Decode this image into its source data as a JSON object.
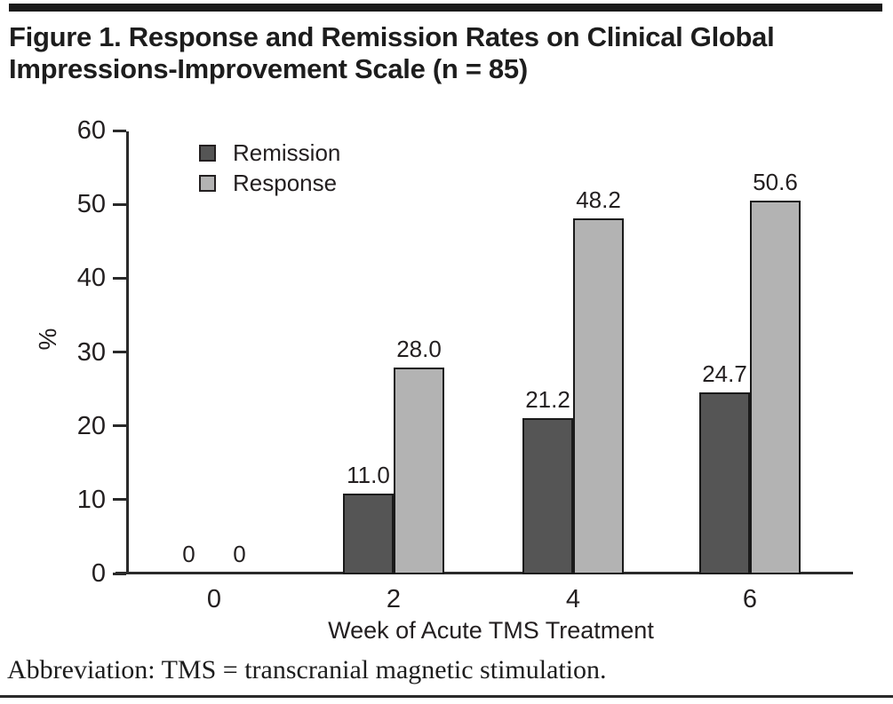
{
  "figure": {
    "title_line1": "Figure 1. Response and Remission Rates on Clinical Global",
    "title_line2": "Impressions-Improvement Scale (n = 85)",
    "footnote": "Abbreviation: TMS = transcranial magnetic stimulation."
  },
  "chart_data": {
    "type": "bar",
    "title": "Figure 1. Response and Remission Rates on Clinical Global Impressions-Improvement Scale (n = 85)",
    "categories": [
      "0",
      "2",
      "4",
      "6"
    ],
    "series": [
      {
        "name": "Remission",
        "values": [
          0,
          11.0,
          21.2,
          24.7
        ],
        "labels": [
          "0",
          "11.0",
          "21.2",
          "24.7"
        ],
        "color": "#555555"
      },
      {
        "name": "Response",
        "values": [
          0,
          28.0,
          48.2,
          50.6
        ],
        "labels": [
          "0",
          "28.0",
          "48.2",
          "50.6"
        ],
        "color": "#b3b3b3"
      }
    ],
    "xlabel": "Week of Acute TMS Treatment",
    "ylabel": "%",
    "ylim": [
      0,
      60
    ],
    "yticks": [
      0,
      10,
      20,
      30,
      40,
      50,
      60
    ],
    "legend_position": "top-left-inside",
    "grid": false,
    "bar_border_color": "#1a1a1a",
    "accent_black": "#1a1a1a"
  }
}
